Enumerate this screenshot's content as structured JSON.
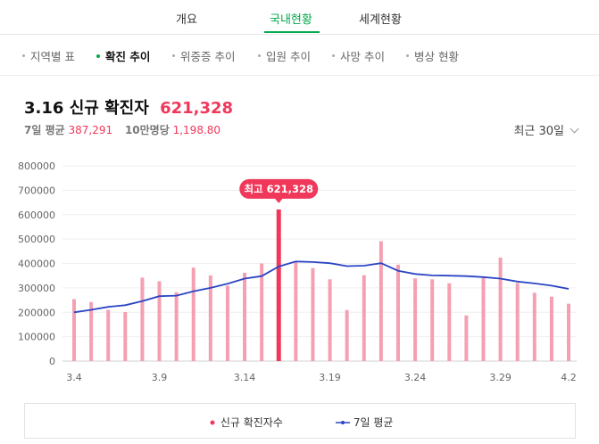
{
  "tabs": [
    {
      "label": "개요"
    },
    {
      "label": "국내현황"
    },
    {
      "label": "세계현황"
    }
  ],
  "active_tab": 1,
  "subnav": [
    {
      "label": "지역별 표"
    },
    {
      "label": "확진 추이"
    },
    {
      "label": "위중증 추이"
    },
    {
      "label": "입원 추이"
    },
    {
      "label": "사망 추이"
    },
    {
      "label": "병상 현황"
    }
  ],
  "active_subnav": 1,
  "headline": {
    "date": "3.16",
    "title": "신규 확진자",
    "value": "621,328"
  },
  "stats": {
    "avg_label": "7일 평균",
    "avg_value": "387,291",
    "per_label": "10만명당",
    "per_value": "1,198.80"
  },
  "period": {
    "label": "최근 30일"
  },
  "tooltip": {
    "label": "최고",
    "value": "621,328"
  },
  "colors": {
    "bar": "#f5a0b2",
    "bar_highlight": "#f0385a",
    "line": "#2b44c4",
    "accent": "#03a94d"
  },
  "chart_data": {
    "type": "bar",
    "categories": [
      "3.4",
      "3.5",
      "3.6",
      "3.7",
      "3.8",
      "3.9",
      "3.10",
      "3.11",
      "3.12",
      "3.13",
      "3.14",
      "3.15",
      "3.16",
      "3.17",
      "3.18",
      "3.19",
      "3.20",
      "3.21",
      "3.22",
      "3.23",
      "3.24",
      "3.25",
      "3.26",
      "3.27",
      "3.28",
      "3.29",
      "3.30",
      "3.31",
      "4.1",
      "4.2"
    ],
    "tick_labels": [
      "3.4",
      "3.9",
      "3.14",
      "3.19",
      "3.24",
      "3.29",
      "4.2"
    ],
    "tick_indices": [
      0,
      5,
      10,
      15,
      20,
      25,
      29
    ],
    "y_ticks": [
      "800000",
      "700000",
      "600000",
      "500000",
      "400000",
      "300000",
      "200000",
      "100000",
      "0"
    ],
    "ylim": [
      0,
      800000
    ],
    "highlight_index": 12,
    "series": [
      {
        "name": "신규 확진자수",
        "type": "bar",
        "values": [
          254000,
          242000,
          210000,
          201000,
          342000,
          327000,
          282000,
          383000,
          351000,
          309000,
          362000,
          400000,
          621328,
          408000,
          381000,
          335000,
          209000,
          352000,
          491000,
          395000,
          339000,
          335000,
          319000,
          187000,
          347000,
          424000,
          320000,
          280000,
          264000,
          235000
        ]
      },
      {
        "name": "7일 평균",
        "type": "line",
        "values": [
          200000,
          210000,
          222000,
          229000,
          246000,
          266000,
          268000,
          286000,
          300000,
          317000,
          338000,
          348000,
          387291,
          408000,
          406000,
          401000,
          389000,
          391000,
          401000,
          370000,
          357000,
          351000,
          350000,
          348000,
          344000,
          338000,
          326000,
          318000,
          309000,
          296000
        ]
      }
    ],
    "grid": true,
    "legend_position": "bottom"
  }
}
